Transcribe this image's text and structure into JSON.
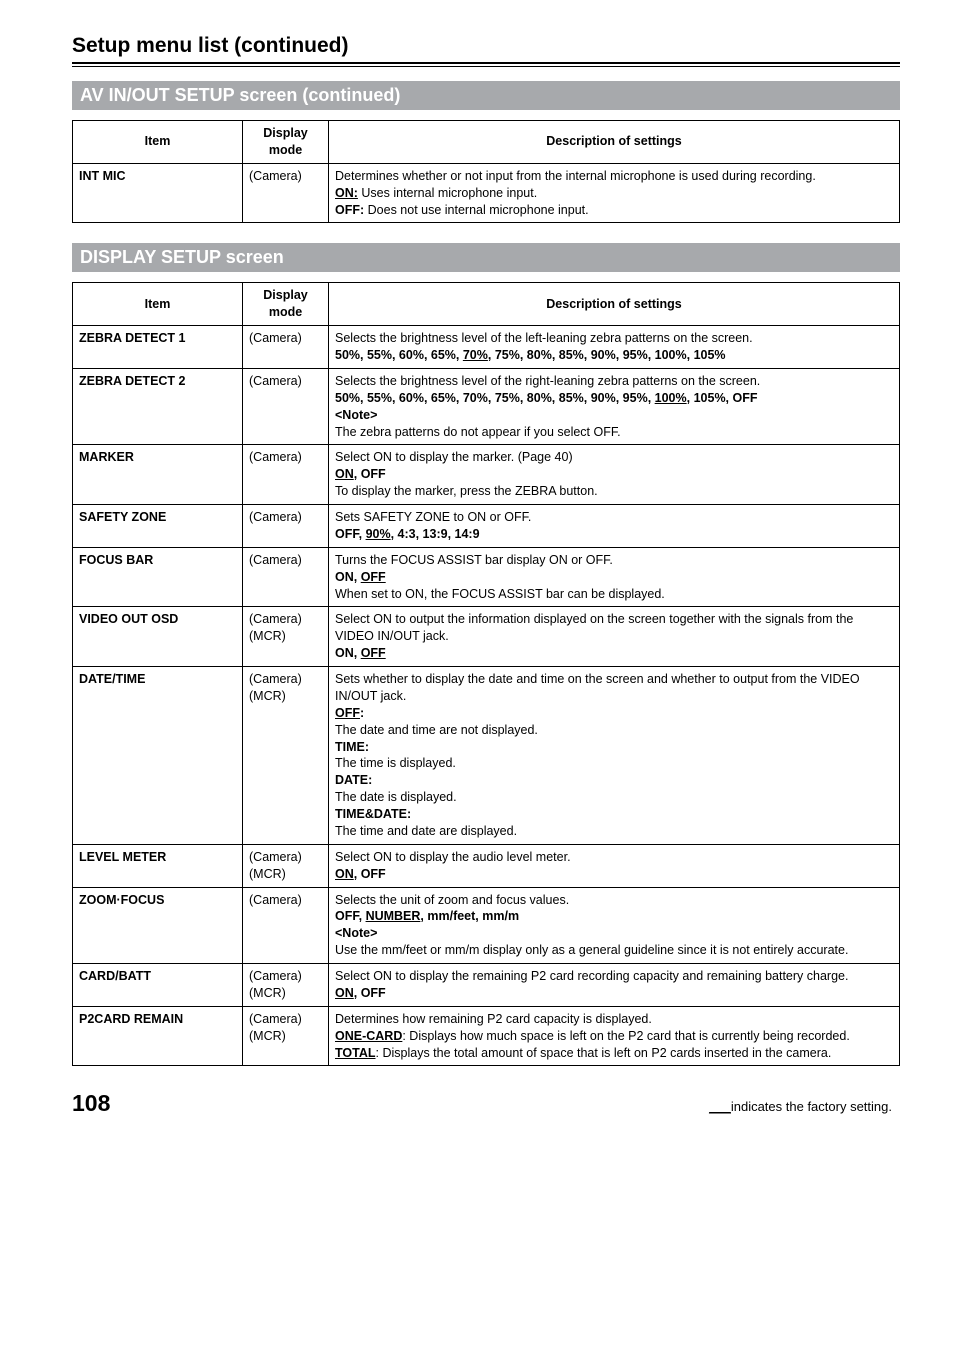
{
  "pageTitle": "Setup menu list (continued)",
  "section1Title": "AV IN/OUT SETUP screen (continued)",
  "section2Title": "DISPLAY SETUP screen",
  "headers": {
    "item": "Item",
    "mode": "Display mode",
    "desc": "Description of settings"
  },
  "t1": {
    "r0": {
      "item": "INT MIC",
      "mode": "(Camera)",
      "d1": "Determines whether or not input from the internal microphone is used during recording.",
      "on": "ON:",
      "onT": " Uses internal microphone input.",
      "off": "OFF:",
      "offT": " Does not use internal microphone input."
    }
  },
  "t2": {
    "r0": {
      "item": "ZEBRA DETECT 1",
      "mode": "(Camera)",
      "d1": "Selects the brightness level of the left-leaning zebra patterns on the screen.",
      "opts1": "50%, 55%, 60%, 65%, ",
      "def": "70%",
      "opts2": ", 75%, 80%, 85%, 90%, 95%, 100%, 105%"
    },
    "r1": {
      "item": "ZEBRA DETECT 2",
      "mode": "(Camera)",
      "d1": "Selects the brightness level of the right-leaning zebra patterns on the screen.",
      "opts1": "50%, 55%, 60%, 65%, 70%, 75%, 80%, 85%, 90%, 95%, ",
      "def": "100%",
      "opts2": ", 105%, OFF",
      "note": "<Note>",
      "noteT": "The zebra patterns do not appear if you select OFF."
    },
    "r2": {
      "item": "MARKER",
      "mode": "(Camera)",
      "d1": "Select ON to display the marker. (Page 40)",
      "def": "ON",
      "opts2": ", OFF",
      "d2": "To display the marker, press the ZEBRA button."
    },
    "r3": {
      "item": "SAFETY ZONE",
      "mode": "(Camera)",
      "d1": "Sets SAFETY ZONE to ON or OFF.",
      "opts1": "OFF, ",
      "def": "90%",
      "opts2": ", 4:3, 13:9, 14:9"
    },
    "r4": {
      "item": "FOCUS BAR",
      "mode": "(Camera)",
      "d1": "Turns the FOCUS ASSIST bar display ON or OFF.",
      "opts1": "ON, ",
      "def": "OFF",
      "d2": "When set to ON, the FOCUS ASSIST bar can be displayed."
    },
    "r5": {
      "item": "VIDEO OUT OSD",
      "mode1": "(Camera)",
      "mode2": "(MCR)",
      "d1": "Select ON to output the information displayed on the screen together with the signals from the VIDEO IN/OUT jack.",
      "opts1": "ON, ",
      "def": "OFF"
    },
    "r6": {
      "item": "DATE/TIME",
      "mode1": "(Camera)",
      "mode2": "(MCR)",
      "d1": "Sets whether to display the date and time on the screen and whether to output from the VIDEO IN/OUT jack.",
      "off": "OFF",
      "offC": ":",
      "offT": "The date and time are not displayed.",
      "time": "TIME:",
      "timeT": "The time is displayed.",
      "date": "DATE:",
      "dateT": "The date is displayed.",
      "td": "TIME&DATE:",
      "tdT": "The time and date are displayed."
    },
    "r7": {
      "item": "LEVEL METER",
      "mode1": "(Camera)",
      "mode2": "(MCR)",
      "d1": "Select ON to display the audio level meter.",
      "def": "ON",
      "opts2": ", OFF"
    },
    "r8": {
      "item": "ZOOM·FOCUS",
      "mode": "(Camera)",
      "d1": "Selects the unit of zoom and focus values.",
      "opts1": "OFF, ",
      "def": "NUMBER",
      "opts2": ", mm/feet, mm/m",
      "note": "<Note>",
      "noteT": "Use the mm/feet or mm/m display only as a general guideline since it is not entirely accurate."
    },
    "r9": {
      "item": "CARD/BATT",
      "mode1": "(Camera)",
      "mode2": "(MCR)",
      "d1": "Select ON to display the remaining P2 card recording capacity and remaining battery charge.",
      "def": "ON",
      "opts2": ", OFF"
    },
    "r10": {
      "item": "P2CARD REMAIN",
      "mode1": "(Camera)",
      "mode2": "(MCR)",
      "d1": "Determines how remaining P2 card capacity is displayed.",
      "one": "ONE-CARD",
      "oneT": ": Displays how much space is left on the P2 card that is currently being recorded.",
      "tot": "TOTAL",
      "totT": ": Displays the total amount of space that is left on P2 cards inserted in the camera."
    }
  },
  "footer": {
    "page": "108",
    "line": "___",
    "text": "indicates the factory setting."
  }
}
